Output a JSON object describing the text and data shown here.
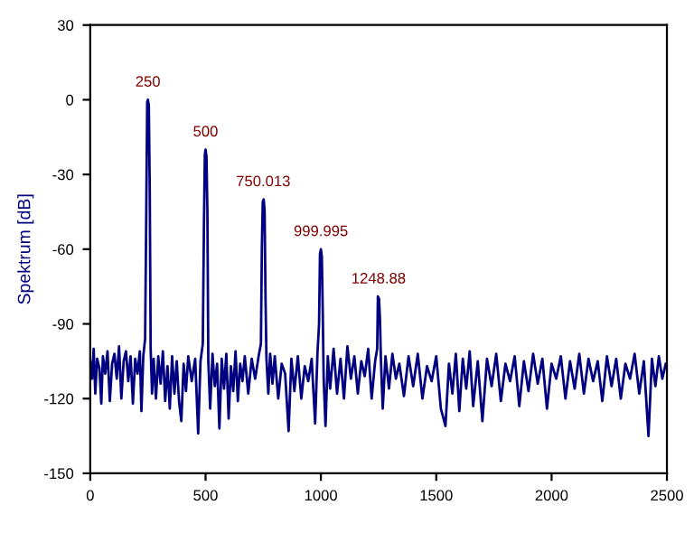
{
  "chart_data": {
    "type": "line",
    "ylabel": "Spektrum [dB]",
    "x": [
      0,
      8,
      15,
      22,
      30,
      40,
      48,
      55,
      65,
      75,
      85,
      95,
      105,
      115,
      125,
      135,
      145,
      155,
      165,
      175,
      185,
      195,
      205,
      215,
      222,
      230,
      238,
      243,
      247,
      250,
      254,
      258,
      262,
      268,
      275,
      285,
      295,
      305,
      315,
      325,
      335,
      345,
      355,
      365,
      375,
      385,
      395,
      405,
      415,
      425,
      440,
      455,
      468,
      478,
      488,
      493,
      497,
      500,
      504,
      508,
      512,
      520,
      530,
      540,
      550,
      560,
      570,
      580,
      590,
      600,
      610,
      620,
      630,
      640,
      650,
      660,
      670,
      685,
      700,
      715,
      730,
      740,
      744,
      748,
      752,
      756,
      760,
      764,
      772,
      780,
      790,
      800,
      815,
      830,
      845,
      860,
      872,
      885,
      900,
      915,
      930,
      945,
      960,
      975,
      985,
      992,
      996,
      1000,
      1004,
      1008,
      1012,
      1020,
      1030,
      1040,
      1055,
      1070,
      1085,
      1100,
      1115,
      1130,
      1145,
      1160,
      1175,
      1190,
      1205,
      1220,
      1235,
      1244,
      1247,
      1252,
      1256,
      1260,
      1268,
      1280,
      1295,
      1310,
      1325,
      1340,
      1360,
      1380,
      1400,
      1420,
      1440,
      1460,
      1480,
      1500,
      1520,
      1540,
      1555,
      1570,
      1585,
      1600,
      1615,
      1630,
      1645,
      1660,
      1680,
      1700,
      1720,
      1740,
      1760,
      1780,
      1800,
      1820,
      1840,
      1860,
      1880,
      1900,
      1920,
      1940,
      1960,
      1980,
      2000,
      2020,
      2040,
      2060,
      2080,
      2100,
      2120,
      2140,
      2160,
      2180,
      2200,
      2220,
      2240,
      2260,
      2280,
      2300,
      2320,
      2340,
      2360,
      2380,
      2400,
      2420,
      2435,
      2450,
      2465,
      2480,
      2495
    ],
    "series": [
      {
        "color": "#000080",
        "values": [
          -105,
          -112,
          -100,
          -118,
          -104,
          -108,
          -122,
          -103,
          -110,
          -101,
          -121,
          -106,
          -102,
          -112,
          -99,
          -120,
          -105,
          -101,
          -113,
          -103,
          -122,
          -104,
          -110,
          -101,
          -125,
          -103,
          -96,
          -45,
          -1,
          0,
          -2,
          -35,
          -100,
          -118,
          -104,
          -120,
          -103,
          -114,
          -101,
          -121,
          -107,
          -124,
          -103,
          -118,
          -105,
          -121,
          -129,
          -106,
          -117,
          -103,
          -113,
          -104,
          -134,
          -105,
          -98,
          -50,
          -22,
          -20,
          -23,
          -45,
          -105,
          -124,
          -102,
          -115,
          -106,
          -132,
          -104,
          -116,
          -102,
          -128,
          -107,
          -117,
          -101,
          -121,
          -106,
          -113,
          -103,
          -118,
          -104,
          -112,
          -103,
          -98,
          -60,
          -41,
          -40,
          -45,
          -80,
          -104,
          -118,
          -102,
          -114,
          -103,
          -120,
          -106,
          -110,
          -133,
          -104,
          -117,
          -103,
          -120,
          -107,
          -113,
          -104,
          -130,
          -102,
          -90,
          -62,
          -60,
          -63,
          -85,
          -112,
          -131,
          -103,
          -116,
          -100,
          -118,
          -104,
          -120,
          -99,
          -112,
          -103,
          -118,
          -105,
          -111,
          -100,
          -120,
          -105,
          -100,
          -79,
          -80,
          -88,
          -104,
          -124,
          -103,
          -116,
          -102,
          -112,
          -106,
          -119,
          -103,
          -115,
          -102,
          -120,
          -107,
          -113,
          -103,
          -124,
          -131,
          -106,
          -118,
          -102,
          -125,
          -104,
          -116,
          -101,
          -123,
          -105,
          -129,
          -104,
          -115,
          -102,
          -121,
          -106,
          -113,
          -103,
          -123,
          -105,
          -117,
          -102,
          -114,
          -104,
          -124,
          -106,
          -112,
          -103,
          -120,
          -105,
          -116,
          -102,
          -118,
          -104,
          -113,
          -105,
          -121,
          -103,
          -115,
          -104,
          -120,
          -106,
          -112,
          -102,
          -118,
          -105,
          -135,
          -104,
          -115,
          -103,
          -112,
          -106
        ]
      }
    ],
    "xlim": [
      0,
      2500
    ],
    "xticks": [
      0,
      500,
      1000,
      1500,
      2000,
      2500
    ],
    "ylim": [
      -150,
      30
    ],
    "yticks": [
      -150,
      -120,
      -90,
      -60,
      -30,
      0,
      30
    ],
    "annotations": [
      {
        "text": "250",
        "x": 250,
        "y": 0
      },
      {
        "text": "500",
        "x": 500,
        "y": -20
      },
      {
        "text": "750.013",
        "x": 750,
        "y": -40
      },
      {
        "text": "999.995",
        "x": 1000,
        "y": -60
      },
      {
        "text": "1248.88",
        "x": 1250,
        "y": -79
      }
    ],
    "grid": false,
    "legend": false
  }
}
